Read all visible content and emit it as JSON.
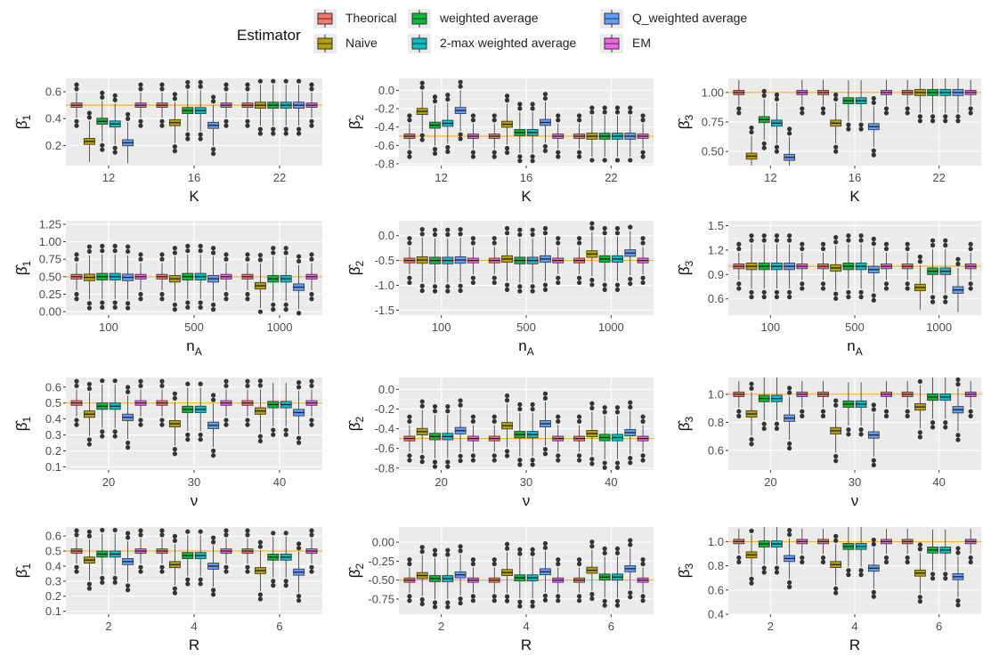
{
  "legend": {
    "title": "Estimator",
    "items": [
      {
        "name": "Theorical",
        "color": "#F8766D"
      },
      {
        "name": "Naive",
        "color": "#B79F00"
      },
      {
        "name": "weighted average",
        "color": "#00BA38"
      },
      {
        "name": "2-max weighted average",
        "color": "#00BFC4"
      },
      {
        "name": "Q_weighted average",
        "color": "#619CFF"
      },
      {
        "name": "EM",
        "color": "#F564E3"
      }
    ]
  },
  "chart_data": [
    {
      "type": "box",
      "xlabel": "K",
      "ylabel": "β̂1",
      "categories": [
        "12",
        "16",
        "22"
      ],
      "yticks": [
        0.2,
        0.4,
        0.6
      ],
      "ylim": [
        0.05,
        0.7
      ],
      "reference_line": 0.5,
      "medians": [
        [
          0.5,
          0.23,
          0.38,
          0.36,
          0.22,
          0.5
        ],
        [
          0.5,
          0.37,
          0.46,
          0.46,
          0.35,
          0.5
        ],
        [
          0.5,
          0.5,
          0.5,
          0.5,
          0.5,
          0.5
        ]
      ]
    },
    {
      "type": "box",
      "xlabel": "K",
      "ylabel": "β̂2",
      "categories": [
        "12",
        "16",
        "22"
      ],
      "yticks": [
        0.0,
        -0.2,
        -0.4,
        -0.6,
        -0.8
      ],
      "ylim": [
        -0.82,
        0.13
      ],
      "reference_line": -0.5,
      "medians": [
        [
          -0.5,
          -0.23,
          -0.38,
          -0.36,
          -0.22,
          -0.5
        ],
        [
          -0.5,
          -0.37,
          -0.46,
          -0.46,
          -0.35,
          -0.5
        ],
        [
          -0.5,
          -0.5,
          -0.5,
          -0.5,
          -0.5,
          -0.5
        ]
      ]
    },
    {
      "type": "box",
      "xlabel": "K",
      "ylabel": "β̂3",
      "categories": [
        "12",
        "16",
        "22"
      ],
      "yticks": [
        0.5,
        0.75,
        1.0
      ],
      "ylim": [
        0.38,
        1.12
      ],
      "reference_line": 1.0,
      "medians": [
        [
          1.0,
          0.46,
          0.77,
          0.74,
          0.45,
          1.0
        ],
        [
          1.0,
          0.74,
          0.93,
          0.93,
          0.71,
          1.0
        ],
        [
          1.0,
          1.0,
          1.0,
          1.0,
          1.0,
          1.0
        ]
      ]
    },
    {
      "type": "box",
      "xlabel": "n_A",
      "ylabel": "β̂1",
      "categories": [
        "100",
        "500",
        "1000"
      ],
      "yticks": [
        0.0,
        0.25,
        0.5,
        0.75,
        1.0,
        1.25
      ],
      "ylim": [
        -0.05,
        1.3
      ],
      "reference_line": 0.5,
      "medians": [
        [
          0.5,
          0.49,
          0.5,
          0.5,
          0.49,
          0.5
        ],
        [
          0.5,
          0.47,
          0.5,
          0.5,
          0.47,
          0.5
        ],
        [
          0.5,
          0.37,
          0.47,
          0.47,
          0.35,
          0.5
        ]
      ]
    },
    {
      "type": "box",
      "xlabel": "n_A",
      "ylabel": "β̂2",
      "categories": [
        "100",
        "500",
        "1000"
      ],
      "yticks": [
        0.0,
        -0.5,
        -1.0,
        -1.5
      ],
      "ylim": [
        -1.6,
        0.3
      ],
      "reference_line": -0.5,
      "medians": [
        [
          -0.5,
          -0.49,
          -0.5,
          -0.5,
          -0.49,
          -0.5
        ],
        [
          -0.5,
          -0.47,
          -0.5,
          -0.5,
          -0.47,
          -0.5
        ],
        [
          -0.5,
          -0.37,
          -0.47,
          -0.47,
          -0.35,
          -0.5
        ]
      ]
    },
    {
      "type": "box",
      "xlabel": "n_A",
      "ylabel": "β̂3",
      "categories": [
        "100",
        "500",
        "1000"
      ],
      "yticks": [
        0.6,
        0.9,
        1.2,
        1.5
      ],
      "ylim": [
        0.4,
        1.56
      ],
      "reference_line": 1.0,
      "medians": [
        [
          1.0,
          1.0,
          1.0,
          1.0,
          1.0,
          1.0
        ],
        [
          1.0,
          0.98,
          1.0,
          1.0,
          0.96,
          1.0
        ],
        [
          1.0,
          0.74,
          0.94,
          0.94,
          0.71,
          1.0
        ]
      ]
    },
    {
      "type": "box",
      "xlabel": "ν",
      "ylabel": "β̂1",
      "categories": [
        "20",
        "30",
        "40"
      ],
      "yticks": [
        0.1,
        0.2,
        0.3,
        0.4,
        0.5,
        0.6
      ],
      "ylim": [
        0.08,
        0.66
      ],
      "reference_line": 0.5,
      "medians": [
        [
          0.5,
          0.43,
          0.48,
          0.48,
          0.41,
          0.5
        ],
        [
          0.5,
          0.37,
          0.46,
          0.46,
          0.36,
          0.5
        ],
        [
          0.5,
          0.45,
          0.49,
          0.49,
          0.44,
          0.5
        ]
      ]
    },
    {
      "type": "box",
      "xlabel": "ν",
      "ylabel": "β̂2",
      "categories": [
        "20",
        "30",
        "40"
      ],
      "yticks": [
        0.0,
        -0.2,
        -0.4,
        -0.6,
        -0.8
      ],
      "ylim": [
        -0.82,
        0.12
      ],
      "reference_line": -0.5,
      "medians": [
        [
          -0.5,
          -0.43,
          -0.48,
          -0.48,
          -0.42,
          -0.5
        ],
        [
          -0.5,
          -0.37,
          -0.46,
          -0.46,
          -0.35,
          -0.5
        ],
        [
          -0.5,
          -0.45,
          -0.49,
          -0.49,
          -0.44,
          -0.5
        ]
      ]
    },
    {
      "type": "box",
      "xlabel": "ν",
      "ylabel": "β̂3",
      "categories": [
        "20",
        "30",
        "40"
      ],
      "yticks": [
        0.6,
        0.8,
        1.0
      ],
      "ylim": [
        0.46,
        1.12
      ],
      "reference_line": 1.0,
      "medians": [
        [
          1.0,
          0.86,
          0.97,
          0.97,
          0.83,
          1.0
        ],
        [
          1.0,
          0.74,
          0.93,
          0.93,
          0.71,
          1.0
        ],
        [
          1.0,
          0.91,
          0.98,
          0.98,
          0.89,
          1.0
        ]
      ]
    },
    {
      "type": "box",
      "xlabel": "R",
      "ylabel": "β̂1",
      "categories": [
        "2",
        "4",
        "6"
      ],
      "yticks": [
        0.1,
        0.2,
        0.3,
        0.4,
        0.5,
        0.6
      ],
      "ylim": [
        0.08,
        0.66
      ],
      "reference_line": 0.5,
      "medians": [
        [
          0.5,
          0.44,
          0.48,
          0.48,
          0.43,
          0.5
        ],
        [
          0.5,
          0.41,
          0.47,
          0.47,
          0.4,
          0.5
        ],
        [
          0.5,
          0.37,
          0.46,
          0.46,
          0.36,
          0.5
        ]
      ]
    },
    {
      "type": "box",
      "xlabel": "R",
      "ylabel": "β̂2",
      "categories": [
        "2",
        "4",
        "6"
      ],
      "yticks": [
        0.0,
        -0.25,
        -0.5,
        -0.75
      ],
      "ylim": [
        -0.95,
        0.2
      ],
      "reference_line": -0.5,
      "medians": [
        [
          -0.5,
          -0.44,
          -0.48,
          -0.48,
          -0.43,
          -0.5
        ],
        [
          -0.5,
          -0.4,
          -0.47,
          -0.47,
          -0.39,
          -0.5
        ],
        [
          -0.5,
          -0.37,
          -0.46,
          -0.46,
          -0.35,
          -0.5
        ]
      ]
    },
    {
      "type": "box",
      "xlabel": "R",
      "ylabel": "β̂3",
      "categories": [
        "2",
        "4",
        "6"
      ],
      "yticks": [
        0.4,
        0.6,
        0.8,
        1.0
      ],
      "ylim": [
        0.4,
        1.12
      ],
      "reference_line": 1.0,
      "medians": [
        [
          1.0,
          0.89,
          0.98,
          0.98,
          0.86,
          1.0
        ],
        [
          1.0,
          0.81,
          0.96,
          0.96,
          0.78,
          1.0
        ],
        [
          1.0,
          0.74,
          0.93,
          0.93,
          0.71,
          1.0
        ]
      ]
    }
  ]
}
